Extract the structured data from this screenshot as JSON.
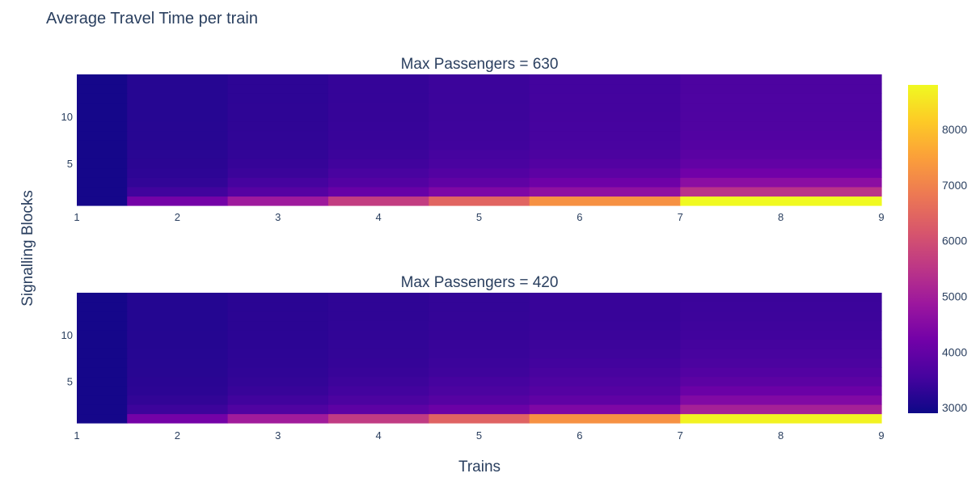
{
  "chart_data": {
    "type": "heatmap",
    "title": "Average Travel Time per train",
    "xlabel": "Trains",
    "ylabel": "Signalling Blocks",
    "colorscale": "plasma",
    "colorscale_stops": [
      "#0d0887",
      "#46039f",
      "#7201a8",
      "#9c179e",
      "#bd3786",
      "#d8576b",
      "#ed7953",
      "#fb9f3a",
      "#fdca26",
      "#f0f921"
    ],
    "zrange": [
      2900,
      8800
    ],
    "colorbar_ticks": [
      3000,
      4000,
      5000,
      6000,
      7000,
      8000
    ],
    "x_tick_labels": [
      "1",
      "2",
      "3",
      "4",
      "5",
      "6",
      "7",
      "8",
      "9"
    ],
    "y_tick_labels": [
      "5",
      "10"
    ],
    "x_edges": [
      1,
      1.5,
      2.5,
      3.5,
      4.5,
      5.5,
      7,
      9
    ],
    "trains": [
      1,
      2,
      3,
      4,
      5,
      6,
      7
    ],
    "y_range": [
      0.5,
      14.5
    ],
    "blocks": [
      1,
      2,
      3,
      4,
      5,
      6,
      7,
      8,
      9,
      10,
      11,
      12,
      13,
      14
    ],
    "panels": [
      {
        "title": "Max Passengers = 630",
        "z": [
          [
            2990,
            4250,
            4900,
            5650,
            6450,
            7250,
            8800
          ],
          [
            2990,
            3500,
            3800,
            4050,
            4400,
            4650,
            5450
          ],
          [
            2990,
            3330,
            3550,
            3750,
            3950,
            4150,
            4600
          ],
          [
            2990,
            3270,
            3430,
            3600,
            3750,
            3900,
            4200
          ],
          [
            2990,
            3240,
            3370,
            3500,
            3620,
            3750,
            3980
          ],
          [
            2990,
            3220,
            3330,
            3440,
            3550,
            3650,
            3850
          ],
          [
            2990,
            3210,
            3310,
            3410,
            3500,
            3600,
            3780
          ],
          [
            2990,
            3200,
            3300,
            3390,
            3480,
            3570,
            3740
          ],
          [
            2990,
            3200,
            3290,
            3380,
            3460,
            3550,
            3710
          ],
          [
            2990,
            3190,
            3280,
            3370,
            3450,
            3540,
            3690
          ],
          [
            2990,
            3190,
            3280,
            3370,
            3450,
            3530,
            3680
          ],
          [
            2990,
            3190,
            3270,
            3360,
            3440,
            3530,
            3670
          ],
          [
            2990,
            3190,
            3270,
            3360,
            3440,
            3520,
            3660
          ],
          [
            2990,
            3190,
            3270,
            3360,
            3440,
            3520,
            3660
          ]
        ]
      },
      {
        "title": "Max Passengers = 420",
        "z": [
          [
            2990,
            4250,
            4950,
            5600,
            6400,
            7250,
            8700
          ],
          [
            2990,
            3450,
            3700,
            3900,
            4100,
            4400,
            5050
          ],
          [
            2990,
            3320,
            3500,
            3650,
            3800,
            3950,
            4450
          ],
          [
            2990,
            3260,
            3390,
            3520,
            3650,
            3780,
            4100
          ],
          [
            2990,
            3230,
            3340,
            3450,
            3560,
            3670,
            3880
          ],
          [
            2990,
            3210,
            3300,
            3390,
            3480,
            3580,
            3750
          ],
          [
            2990,
            3200,
            3280,
            3360,
            3440,
            3520,
            3650
          ],
          [
            2990,
            3190,
            3270,
            3340,
            3410,
            3480,
            3580
          ],
          [
            2990,
            3180,
            3260,
            3330,
            3390,
            3450,
            3540
          ],
          [
            2990,
            3180,
            3250,
            3310,
            3370,
            3430,
            3500
          ],
          [
            2990,
            3170,
            3240,
            3300,
            3360,
            3410,
            3470
          ],
          [
            2990,
            3170,
            3240,
            3290,
            3350,
            3400,
            3450
          ],
          [
            2990,
            3170,
            3230,
            3290,
            3340,
            3390,
            3440
          ],
          [
            2990,
            3170,
            3230,
            3290,
            3340,
            3390,
            3430
          ]
        ]
      }
    ]
  }
}
